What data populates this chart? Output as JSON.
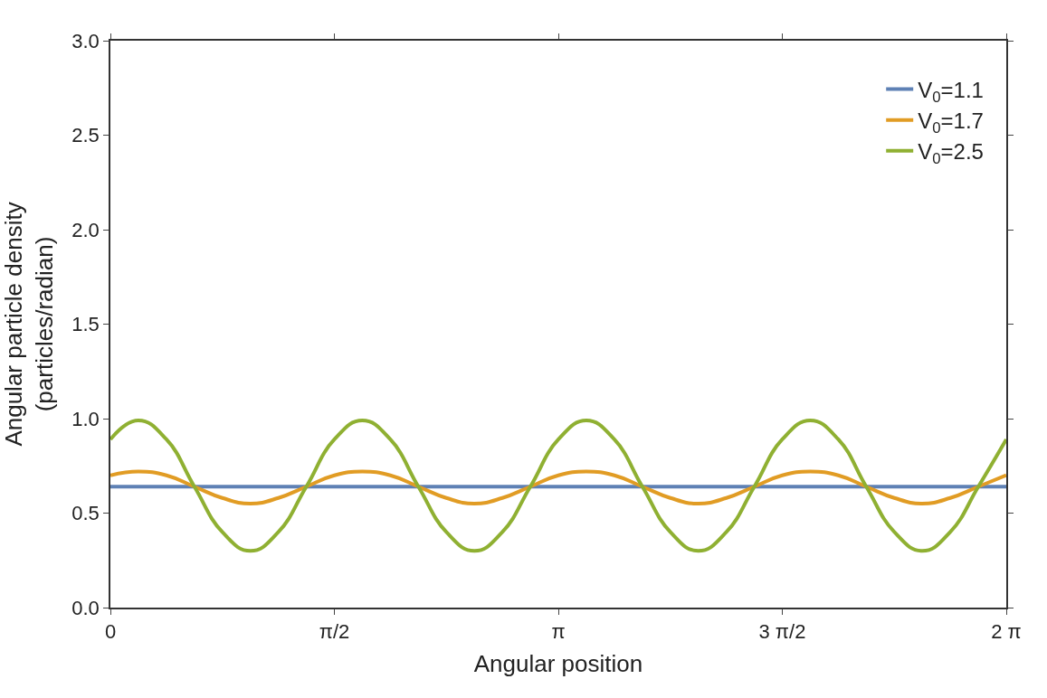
{
  "chart_data": {
    "type": "line",
    "xlabel": "Angular position",
    "ylabel": "Angular particle density\n(particles/radian)",
    "xlim": [
      0,
      6.283
    ],
    "xticks": [
      {
        "value": 0,
        "label": "0"
      },
      {
        "value": 1.571,
        "label": "π/2"
      },
      {
        "value": 3.142,
        "label": "π"
      },
      {
        "value": 4.712,
        "label": "3 π/2"
      },
      {
        "value": 6.283,
        "label": "2 π"
      }
    ],
    "ylim": [
      0,
      3
    ],
    "yticks": [
      {
        "value": 0,
        "label": "0.0"
      },
      {
        "value": 0.5,
        "label": "0.5"
      },
      {
        "value": 1,
        "label": "1.0"
      },
      {
        "value": 1.5,
        "label": "1.5"
      },
      {
        "value": 2,
        "label": "2.0"
      },
      {
        "value": 2.5,
        "label": "2.5"
      },
      {
        "value": 3,
        "label": "3.0"
      }
    ],
    "legend": "top right",
    "marker": "none",
    "line_style": "solid",
    "series": [
      {
        "name": "V$_{0}$=1.1",
        "color": "#5e81b5",
        "x": [
          0,
          6.283
        ],
        "values": [
          0.64,
          0.64
        ]
      },
      {
        "name": "V$_{0}$=1.7",
        "color": "#e19c24",
        "x": [
          0,
          0.196,
          0.393,
          0.589,
          0.785,
          0.982,
          1.178,
          1.374,
          1.571,
          1.767,
          1.963,
          2.16,
          2.356,
          2.553,
          2.749,
          2.945,
          3.142,
          3.338,
          3.534,
          3.731,
          3.927,
          4.123,
          4.32,
          4.516,
          4.712,
          4.909,
          5.105,
          5.301,
          5.498,
          5.694,
          5.89,
          6.087,
          6.283
        ],
        "values": [
          0.7,
          0.72,
          0.7,
          0.64,
          0.58,
          0.55,
          0.58,
          0.64,
          0.7,
          0.72,
          0.7,
          0.64,
          0.58,
          0.55,
          0.58,
          0.64,
          0.7,
          0.72,
          0.7,
          0.64,
          0.58,
          0.55,
          0.58,
          0.64,
          0.7,
          0.72,
          0.7,
          0.64,
          0.58,
          0.55,
          0.58,
          0.64,
          0.7
        ]
      },
      {
        "name": "V$_{0}$=2.5",
        "color": "#8fb032",
        "x": [
          0,
          0.196,
          0.393,
          0.589,
          0.785,
          0.982,
          1.178,
          1.374,
          1.571,
          1.767,
          1.963,
          2.16,
          2.356,
          2.553,
          2.749,
          2.945,
          3.142,
          3.338,
          3.534,
          3.731,
          3.927,
          4.123,
          4.32,
          4.516,
          4.712,
          4.909,
          5.105,
          5.301,
          5.498,
          5.694,
          5.89,
          6.087,
          6.283
        ],
        "values": [
          0.89,
          0.99,
          0.89,
          0.64,
          0.4,
          0.3,
          0.4,
          0.64,
          0.89,
          0.99,
          0.89,
          0.64,
          0.4,
          0.3,
          0.4,
          0.64,
          0.89,
          0.99,
          0.89,
          0.64,
          0.4,
          0.3,
          0.4,
          0.64,
          0.89,
          0.99,
          0.89,
          0.64,
          0.4,
          0.3,
          0.4,
          0.64,
          0.89
        ]
      }
    ]
  }
}
